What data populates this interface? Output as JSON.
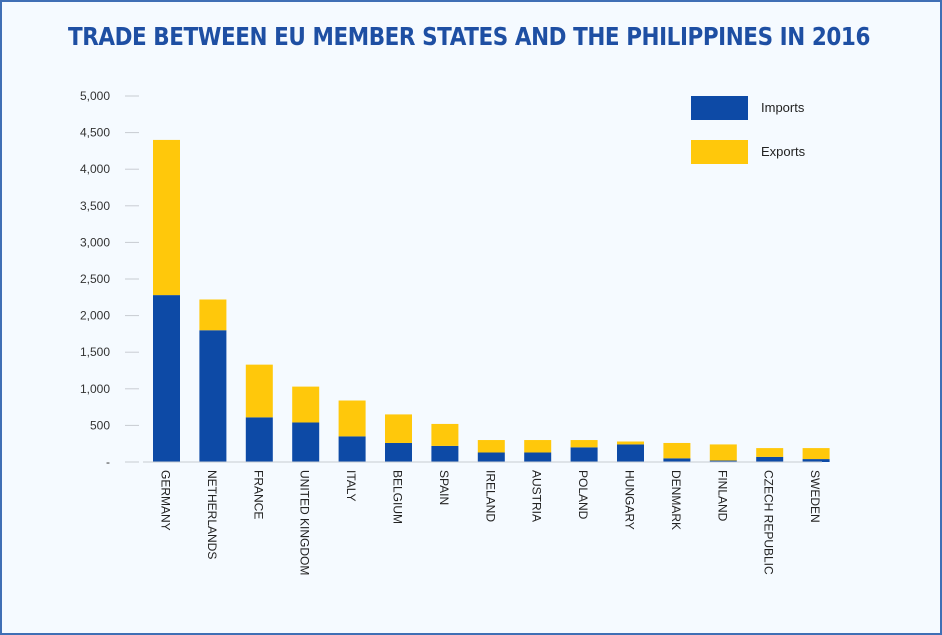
{
  "chart_data": {
    "type": "bar",
    "stacked": true,
    "title": "TRADE BETWEEN EU MEMBER STATES AND THE PHILIPPINES IN 2016",
    "categories": [
      "GERMANY",
      "NETHERLANDS",
      "FRANCE",
      "UNITED KINGDOM",
      "ITALY",
      "BELGIUM",
      "SPAIN",
      "IRELAND",
      "AUSTRIA",
      "POLAND",
      "HUNGARY",
      "DENMARK",
      "FINLAND",
      "CZECH REPUBLIC",
      "SWEDEN"
    ],
    "series": [
      {
        "name": "Imports",
        "color": "#0d4aa6",
        "values": [
          2280,
          1800,
          610,
          540,
          350,
          260,
          220,
          130,
          130,
          200,
          240,
          50,
          20,
          70,
          40
        ]
      },
      {
        "name": "Exports",
        "color": "#ffc80b",
        "values": [
          2120,
          420,
          720,
          490,
          490,
          390,
          300,
          170,
          170,
          100,
          40,
          210,
          220,
          120,
          150
        ]
      }
    ],
    "ylim": [
      0,
      5000
    ],
    "yticks": [
      0,
      500,
      1000,
      1500,
      2000,
      2500,
      3000,
      3500,
      4000,
      4500,
      5000
    ],
    "ytick_labels": [
      "-",
      "500",
      "1,000",
      "1,500",
      "2,000",
      "2,500",
      "3,000",
      "3,500",
      "4,000",
      "4,500",
      "5,000"
    ],
    "legend_position": "top-right",
    "grid": false
  }
}
